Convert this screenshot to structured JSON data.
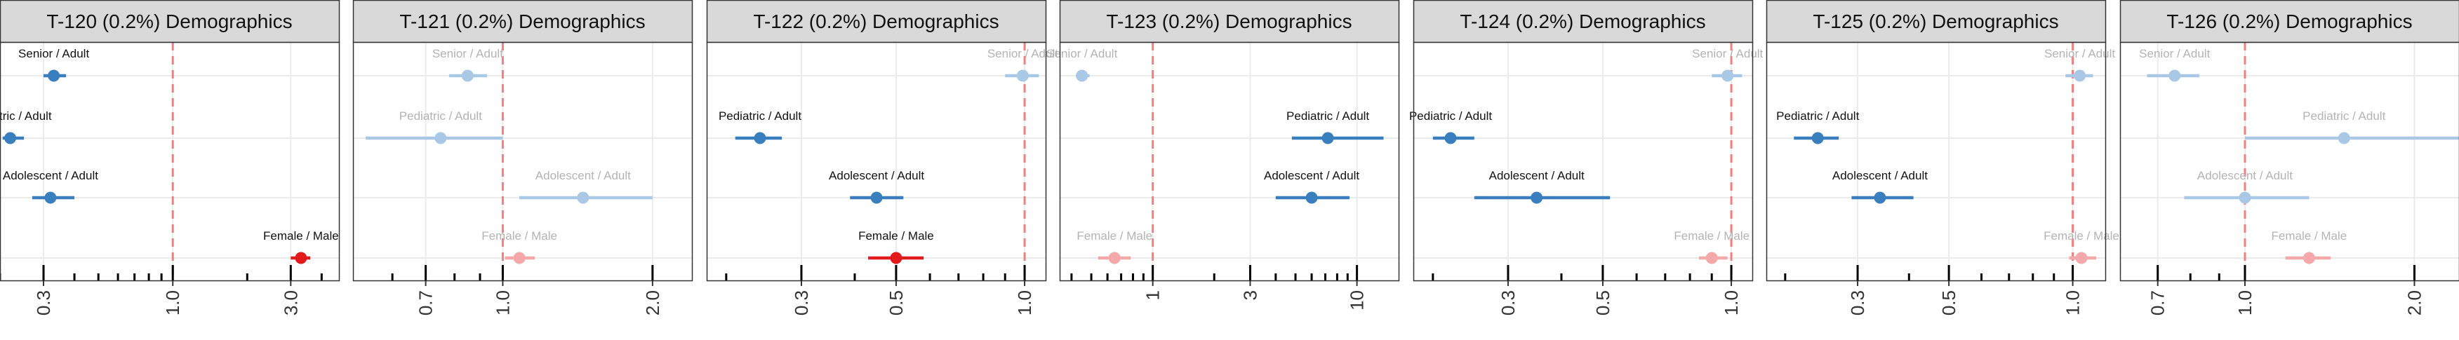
{
  "colors": {
    "blue": "#3a7fbd",
    "red": "#e31a1c",
    "faded_blue": "#a9c8e6",
    "faded_red": "#f5a8a9",
    "refline": "#f08080",
    "header_bg": "#d9d9d9",
    "grid": "#ebebeb",
    "border": "#333333",
    "label_dark": "#111111",
    "label_faded": "#b3b3b3"
  },
  "rows": [
    "Senior / Adult",
    "Pediatric / Adult",
    "Adolescent / Adult",
    "Female / Male"
  ],
  "chart_data": [
    {
      "type": "scatter",
      "scale": "log",
      "title": "T-120 (0.2%) Demographics",
      "xlim": [
        0.2,
        4.7
      ],
      "ticks": [
        "0.3",
        "1.0",
        "3.0"
      ],
      "minor_ticks": [
        0.2,
        0.4,
        0.5,
        0.6,
        0.7,
        0.8,
        0.9,
        2,
        4
      ],
      "points": [
        {
          "label": "Senior / Adult",
          "est": 0.33,
          "lo": 0.3,
          "hi": 0.37,
          "sig": true,
          "color": "blue"
        },
        {
          "label": "Pediatric / Adult",
          "est": 0.22,
          "lo": 0.205,
          "hi": 0.25,
          "sig": true,
          "color": "blue"
        },
        {
          "label": "Adolescent / Adult",
          "est": 0.32,
          "lo": 0.27,
          "hi": 0.4,
          "sig": true,
          "color": "blue"
        },
        {
          "label": "Female / Male",
          "est": 3.3,
          "lo": 3.0,
          "hi": 3.6,
          "sig": true,
          "color": "red"
        }
      ]
    },
    {
      "type": "scatter",
      "scale": "log",
      "title": "T-121 (0.2%) Demographics",
      "xlim": [
        0.5,
        2.4
      ],
      "ticks": [
        "0.7",
        "1.0",
        "2.0"
      ],
      "minor_ticks": [
        0.6,
        0.8,
        0.9
      ],
      "points": [
        {
          "label": "Senior / Adult",
          "est": 0.85,
          "lo": 0.78,
          "hi": 0.93,
          "sig": false,
          "color": "blue"
        },
        {
          "label": "Pediatric / Adult",
          "est": 0.75,
          "lo": 0.53,
          "hi": 1.0,
          "sig": false,
          "color": "blue"
        },
        {
          "label": "Adolescent / Adult",
          "est": 1.45,
          "lo": 1.08,
          "hi": 2.0,
          "sig": false,
          "color": "blue"
        },
        {
          "label": "Female / Male",
          "est": 1.08,
          "lo": 1.01,
          "hi": 1.16,
          "sig": false,
          "color": "red"
        }
      ]
    },
    {
      "type": "scatter",
      "scale": "log",
      "title": "T-122 (0.2%) Demographics",
      "xlim": [
        0.18,
        1.12
      ],
      "ticks": [
        "0.3",
        "0.5",
        "1.0"
      ],
      "minor_ticks": [
        0.2,
        0.4,
        0.6,
        0.7,
        0.8,
        0.9
      ],
      "points": [
        {
          "label": "Senior / Adult",
          "est": 0.99,
          "lo": 0.9,
          "hi": 1.08,
          "sig": false,
          "color": "blue"
        },
        {
          "label": "Pediatric / Adult",
          "est": 0.24,
          "lo": 0.21,
          "hi": 0.27,
          "sig": true,
          "color": "blue"
        },
        {
          "label": "Adolescent / Adult",
          "est": 0.45,
          "lo": 0.39,
          "hi": 0.52,
          "sig": true,
          "color": "blue"
        },
        {
          "label": "Female / Male",
          "est": 0.5,
          "lo": 0.43,
          "hi": 0.58,
          "sig": true,
          "color": "red"
        }
      ]
    },
    {
      "type": "scatter",
      "scale": "log",
      "title": "T-123 (0.2%) Demographics",
      "xlim": [
        0.35,
        16
      ],
      "ticks": [
        "1",
        "3",
        "10"
      ],
      "minor_ticks": [
        0.4,
        0.5,
        0.6,
        0.7,
        0.8,
        0.9,
        2,
        4,
        5,
        6,
        7,
        8,
        9
      ],
      "points": [
        {
          "label": "Senior / Adult",
          "est": 0.45,
          "lo": 0.42,
          "hi": 0.49,
          "sig": false,
          "color": "blue"
        },
        {
          "label": "Pediatric / Adult",
          "est": 7.2,
          "lo": 4.8,
          "hi": 13.5,
          "sig": true,
          "color": "blue"
        },
        {
          "label": "Adolescent / Adult",
          "est": 6.0,
          "lo": 4.0,
          "hi": 9.2,
          "sig": true,
          "color": "blue"
        },
        {
          "label": "Female / Male",
          "est": 0.65,
          "lo": 0.54,
          "hi": 0.78,
          "sig": false,
          "color": "red"
        }
      ]
    },
    {
      "type": "scatter",
      "scale": "log",
      "title": "T-124 (0.2%) Demographics",
      "xlim": [
        0.18,
        1.12
      ],
      "ticks": [
        "0.3",
        "0.5",
        "1.0"
      ],
      "minor_ticks": [
        0.2,
        0.4,
        0.6,
        0.7,
        0.8,
        0.9
      ],
      "points": [
        {
          "label": "Senior / Adult",
          "est": 0.98,
          "lo": 0.9,
          "hi": 1.06,
          "sig": false,
          "color": "blue"
        },
        {
          "label": "Pediatric / Adult",
          "est": 0.22,
          "lo": 0.2,
          "hi": 0.25,
          "sig": true,
          "color": "blue"
        },
        {
          "label": "Adolescent / Adult",
          "est": 0.35,
          "lo": 0.25,
          "hi": 0.52,
          "sig": true,
          "color": "blue"
        },
        {
          "label": "Female / Male",
          "est": 0.9,
          "lo": 0.84,
          "hi": 0.98,
          "sig": false,
          "color": "red"
        }
      ]
    },
    {
      "type": "scatter",
      "scale": "log",
      "title": "T-125 (0.2%) Demographics",
      "xlim": [
        0.18,
        1.2
      ],
      "ticks": [
        "0.3",
        "0.5",
        "1.0"
      ],
      "minor_ticks": [
        0.2,
        0.4,
        0.6,
        0.7,
        0.8,
        0.9
      ],
      "points": [
        {
          "label": "Senior / Adult",
          "est": 1.04,
          "lo": 0.96,
          "hi": 1.12,
          "sig": false,
          "color": "blue"
        },
        {
          "label": "Pediatric / Adult",
          "est": 0.24,
          "lo": 0.21,
          "hi": 0.27,
          "sig": true,
          "color": "blue"
        },
        {
          "label": "Adolescent / Adult",
          "est": 0.34,
          "lo": 0.29,
          "hi": 0.41,
          "sig": true,
          "color": "blue"
        },
        {
          "label": "Female / Male",
          "est": 1.05,
          "lo": 0.98,
          "hi": 1.14,
          "sig": false,
          "color": "red"
        }
      ]
    },
    {
      "type": "scatter",
      "scale": "log",
      "title": "T-126 (0.2%) Demographics",
      "xlim": [
        0.6,
        2.4
      ],
      "ticks": [
        "0.7",
        "1.0",
        "2.0"
      ],
      "minor_ticks": [
        0.8,
        0.9
      ],
      "points": [
        {
          "label": "Senior / Adult",
          "est": 0.75,
          "lo": 0.67,
          "hi": 0.83,
          "sig": false,
          "color": "blue"
        },
        {
          "label": "Pediatric / Adult",
          "est": 1.5,
          "lo": 1.0,
          "hi": 2.4,
          "sig": false,
          "color": "blue"
        },
        {
          "label": "Adolescent / Adult",
          "est": 1.0,
          "lo": 0.78,
          "hi": 1.3,
          "sig": false,
          "color": "blue"
        },
        {
          "label": "Female / Male",
          "est": 1.3,
          "lo": 1.18,
          "hi": 1.42,
          "sig": false,
          "color": "red"
        }
      ]
    }
  ]
}
